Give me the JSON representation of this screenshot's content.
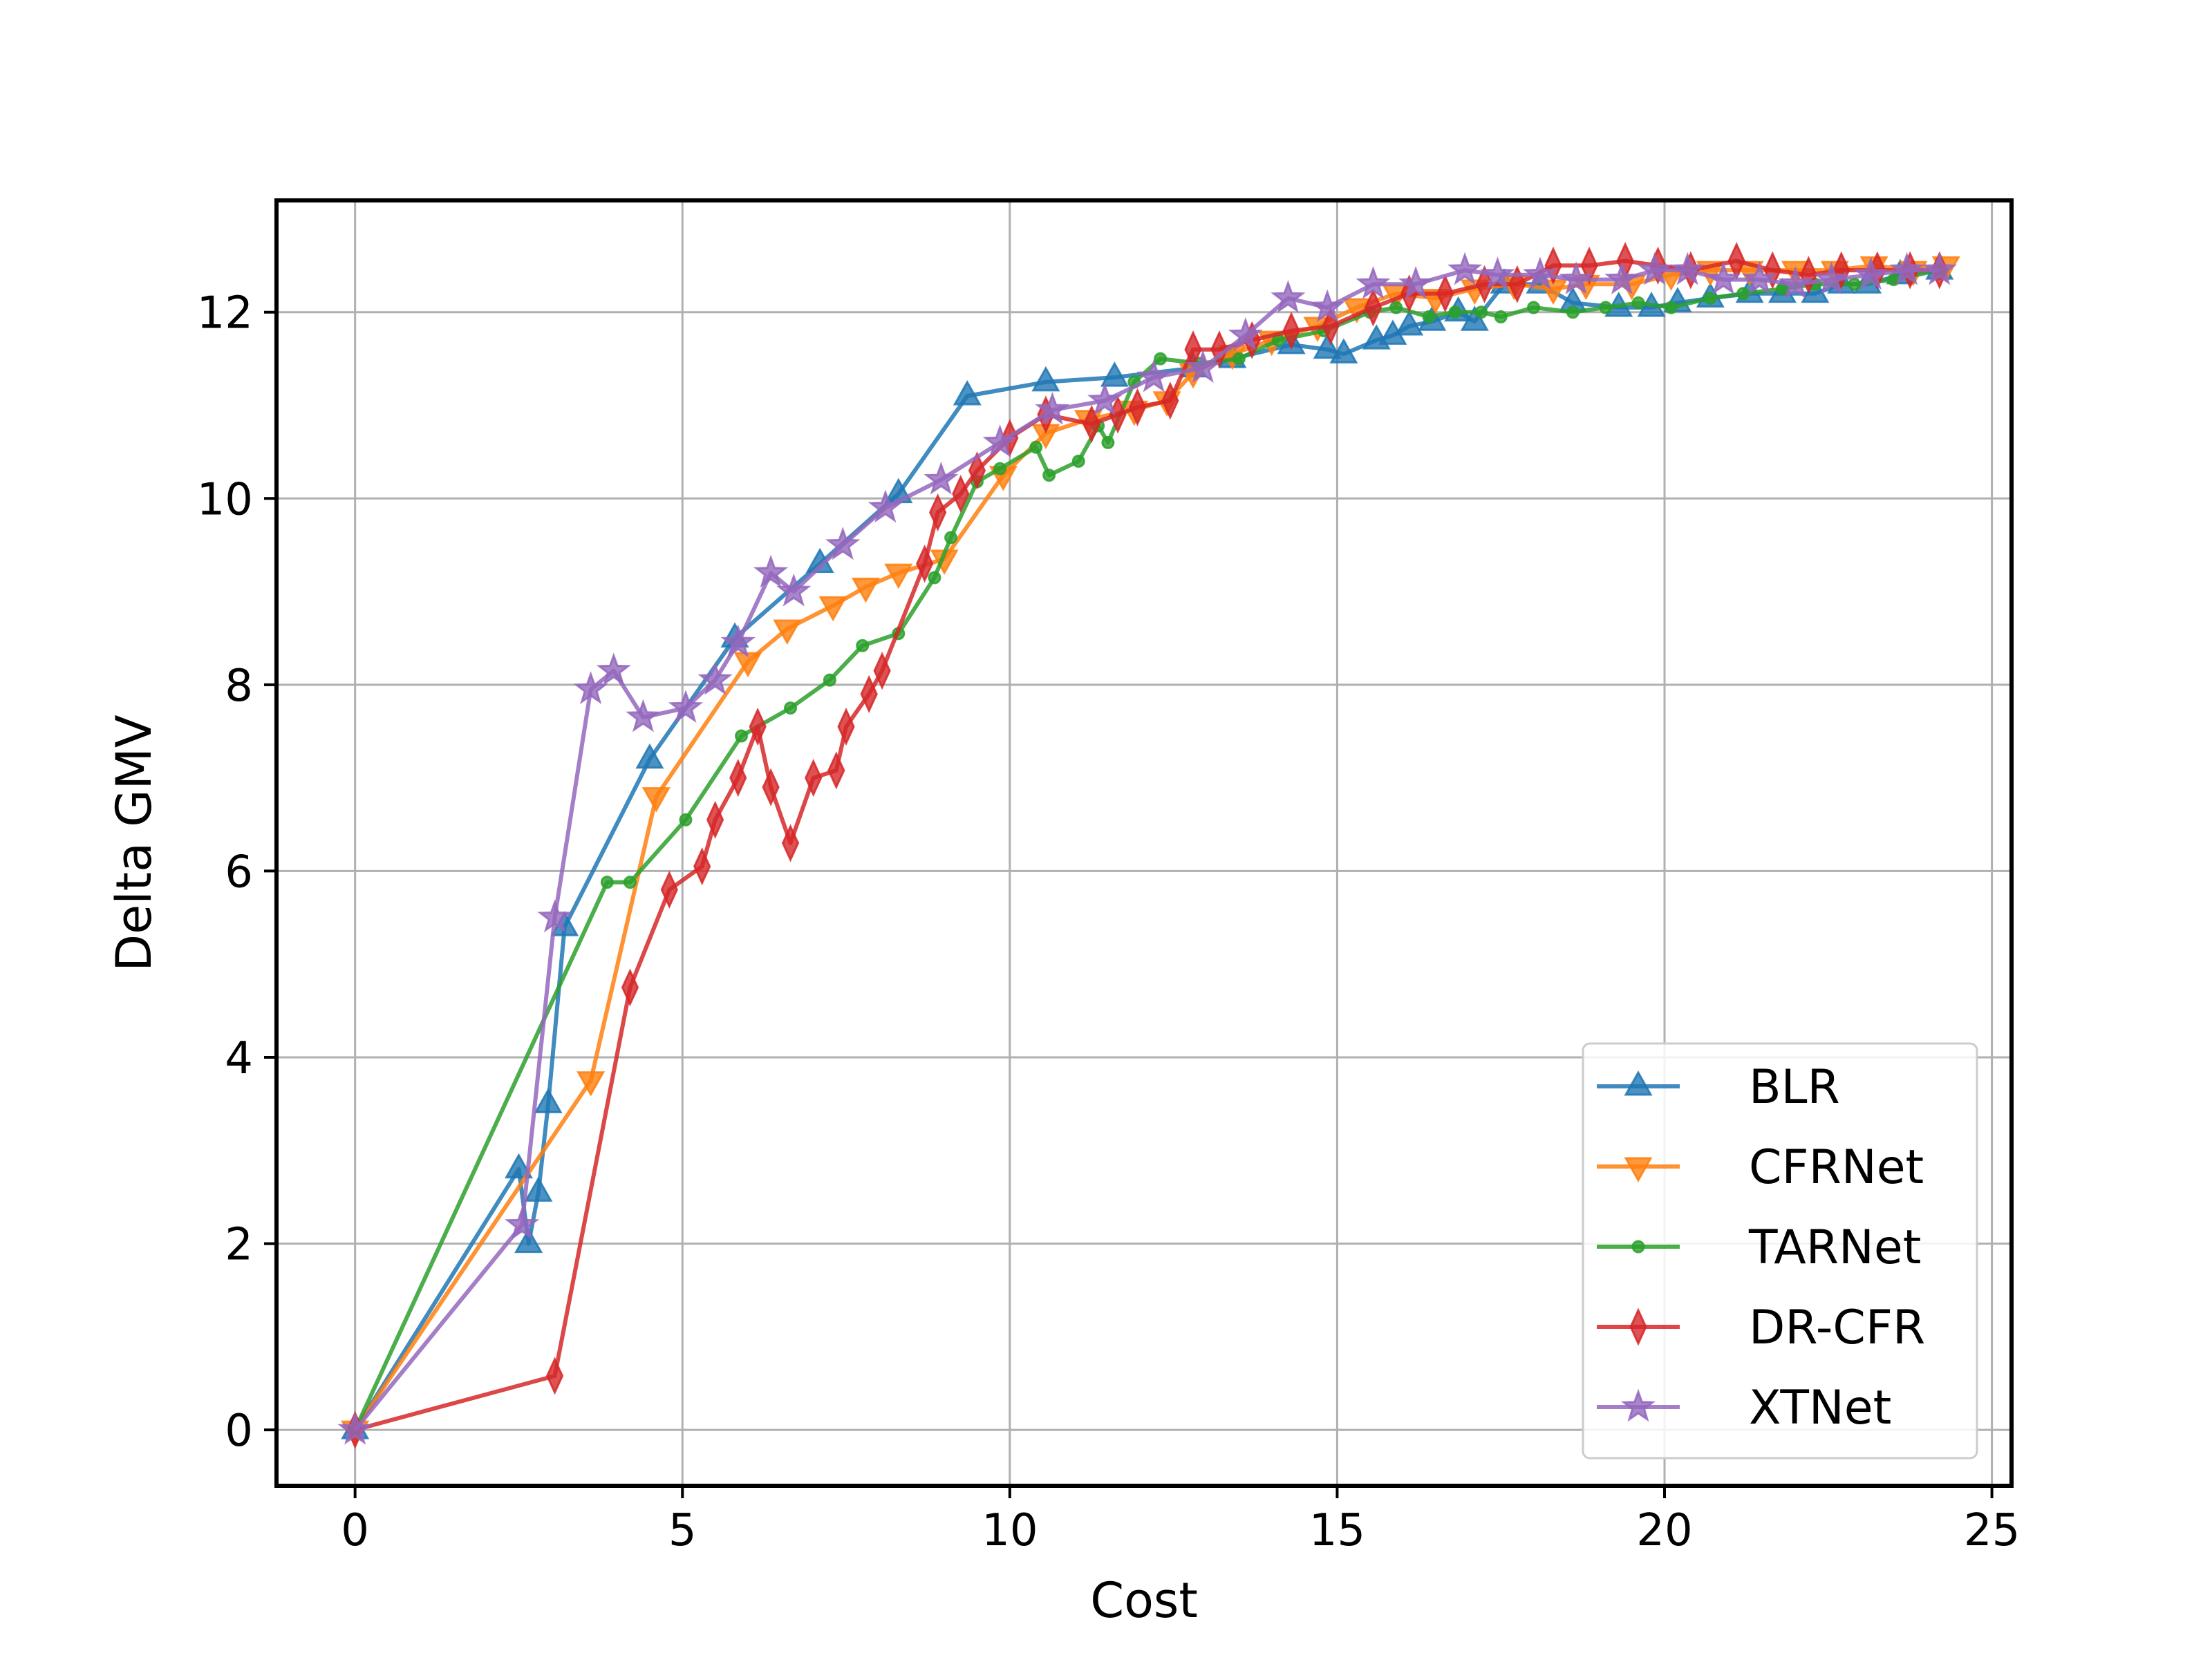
{
  "chart_data": {
    "type": "line",
    "title": "",
    "xlabel": "Cost",
    "ylabel": "Delta GMV",
    "xlim": [
      -1.2,
      25.3
    ],
    "ylim": [
      -0.6,
      13.2
    ],
    "xticks": [
      0,
      5,
      10,
      15,
      20,
      25
    ],
    "yticks": [
      0,
      2,
      4,
      6,
      8,
      10,
      12
    ],
    "xtick_labels": [
      "0",
      "5",
      "10",
      "15",
      "20",
      "25"
    ],
    "ytick_labels": [
      "0",
      "2",
      "4",
      "6",
      "8",
      "10",
      "12"
    ],
    "grid": true,
    "legend_position": "lower-right",
    "series": [
      {
        "name": "BLR",
        "color": "#1f77b4",
        "marker": "triangle-up",
        "x": [
          0,
          2.5,
          2.65,
          2.8,
          2.95,
          3.2,
          4.5,
          5.8,
          7.1,
          8.3,
          9.35,
          10.55,
          11.6,
          12.8,
          13.4,
          14.3,
          14.85,
          15.1,
          15.6,
          15.85,
          16.1,
          16.45,
          16.85,
          17.1,
          17.55,
          18.1,
          18.6,
          19.3,
          19.8,
          20.2,
          20.7,
          21.3,
          21.8,
          22.3,
          22.7,
          23.1,
          23.6,
          24.2
        ],
        "y": [
          0,
          2.8,
          2.0,
          2.55,
          3.5,
          5.4,
          7.2,
          8.5,
          9.3,
          10.05,
          11.1,
          11.25,
          11.3,
          11.4,
          11.5,
          11.65,
          11.6,
          11.55,
          11.7,
          11.75,
          11.85,
          11.9,
          12.0,
          11.9,
          12.3,
          12.3,
          12.1,
          12.05,
          12.05,
          12.1,
          12.15,
          12.2,
          12.2,
          12.2,
          12.3,
          12.3,
          12.4,
          12.45
        ]
      },
      {
        "name": "CFRNet",
        "color": "#ff7f0e",
        "marker": "triangle-down",
        "x": [
          0,
          3.6,
          4.6,
          6.0,
          6.6,
          7.3,
          7.8,
          8.3,
          9.0,
          9.9,
          10.55,
          11.2,
          11.9,
          12.4,
          12.8,
          13.4,
          14.0,
          14.7,
          15.3,
          15.9,
          16.5,
          17.1,
          17.7,
          18.3,
          18.8,
          19.5,
          20.1,
          20.7,
          21.3,
          22.0,
          22.6,
          23.2,
          23.8,
          24.3
        ],
        "y": [
          0,
          3.75,
          6.8,
          8.25,
          8.6,
          8.85,
          9.05,
          9.2,
          9.35,
          10.25,
          10.7,
          10.85,
          10.95,
          11.05,
          11.35,
          11.55,
          11.7,
          11.85,
          12.05,
          12.2,
          12.15,
          12.25,
          12.3,
          12.25,
          12.3,
          12.3,
          12.4,
          12.45,
          12.45,
          12.45,
          12.45,
          12.5,
          12.45,
          12.5
        ]
      },
      {
        "name": "TARNet",
        "color": "#2ca02c",
        "marker": "point",
        "x": [
          0,
          3.85,
          4.2,
          5.05,
          5.9,
          6.65,
          7.25,
          7.75,
          8.3,
          8.85,
          9.1,
          9.5,
          9.85,
          10.4,
          10.6,
          11.05,
          11.35,
          11.5,
          11.9,
          12.3,
          12.9,
          13.5,
          14.1,
          14.8,
          15.5,
          15.9,
          16.4,
          16.8,
          17.2,
          17.5,
          18.0,
          18.6,
          19.1,
          19.6,
          20.1,
          20.7,
          21.2,
          21.8,
          22.3,
          22.9,
          23.5,
          24.2
        ],
        "y": [
          0,
          5.88,
          5.88,
          6.55,
          7.45,
          7.75,
          8.05,
          8.42,
          8.55,
          9.15,
          9.58,
          10.18,
          10.32,
          10.55,
          10.25,
          10.4,
          10.78,
          10.6,
          11.25,
          11.5,
          11.45,
          11.5,
          11.7,
          11.8,
          12.0,
          12.05,
          11.95,
          12.0,
          12.0,
          11.95,
          12.05,
          12.0,
          12.05,
          12.1,
          12.05,
          12.15,
          12.2,
          12.25,
          12.3,
          12.3,
          12.35,
          12.45
        ]
      },
      {
        "name": "DR-CFR",
        "color": "#d62728",
        "marker": "thin-diamond",
        "x": [
          0,
          3.05,
          4.2,
          4.8,
          5.3,
          5.5,
          5.85,
          6.15,
          6.35,
          6.65,
          7.0,
          7.35,
          7.5,
          7.85,
          8.05,
          8.7,
          8.9,
          9.25,
          9.5,
          10.0,
          10.55,
          11.25,
          11.65,
          11.95,
          12.45,
          12.8,
          13.2,
          13.7,
          14.3,
          14.9,
          15.55,
          16.1,
          16.65,
          17.25,
          17.75,
          18.3,
          18.85,
          19.4,
          19.9,
          20.4,
          21.1,
          21.65,
          22.2,
          22.7,
          23.25,
          23.75,
          24.2
        ],
        "y": [
          0,
          0.58,
          4.75,
          5.8,
          6.05,
          6.55,
          7.0,
          7.55,
          6.9,
          6.3,
          7.0,
          7.08,
          7.55,
          7.9,
          8.15,
          9.3,
          9.85,
          10.05,
          10.3,
          10.65,
          10.9,
          10.8,
          10.9,
          10.98,
          11.05,
          11.6,
          11.6,
          11.7,
          11.8,
          11.85,
          12.05,
          12.2,
          12.2,
          12.3,
          12.3,
          12.5,
          12.5,
          12.55,
          12.5,
          12.45,
          12.55,
          12.45,
          12.4,
          12.45,
          12.45,
          12.45,
          12.45
        ]
      },
      {
        "name": "XTNet",
        "color": "#9467bd",
        "marker": "star",
        "x": [
          0,
          2.55,
          3.05,
          3.6,
          3.95,
          4.4,
          5.05,
          5.5,
          5.85,
          6.35,
          6.7,
          7.45,
          8.1,
          8.95,
          9.85,
          10.65,
          11.45,
          12.2,
          12.95,
          13.6,
          14.25,
          14.85,
          15.55,
          16.2,
          16.95,
          17.45,
          18.1,
          18.65,
          19.35,
          19.85,
          20.35,
          20.9,
          21.45,
          22.0,
          22.55,
          23.15,
          23.7,
          24.2
        ],
        "y": [
          0,
          2.2,
          5.5,
          7.95,
          8.15,
          7.65,
          7.75,
          8.05,
          8.45,
          9.2,
          9.0,
          9.5,
          9.9,
          10.2,
          10.6,
          10.95,
          11.05,
          11.3,
          11.4,
          11.75,
          12.15,
          12.05,
          12.3,
          12.3,
          12.45,
          12.4,
          12.4,
          12.35,
          12.35,
          12.45,
          12.45,
          12.35,
          12.35,
          12.3,
          12.35,
          12.4,
          12.45,
          12.45
        ]
      }
    ]
  }
}
